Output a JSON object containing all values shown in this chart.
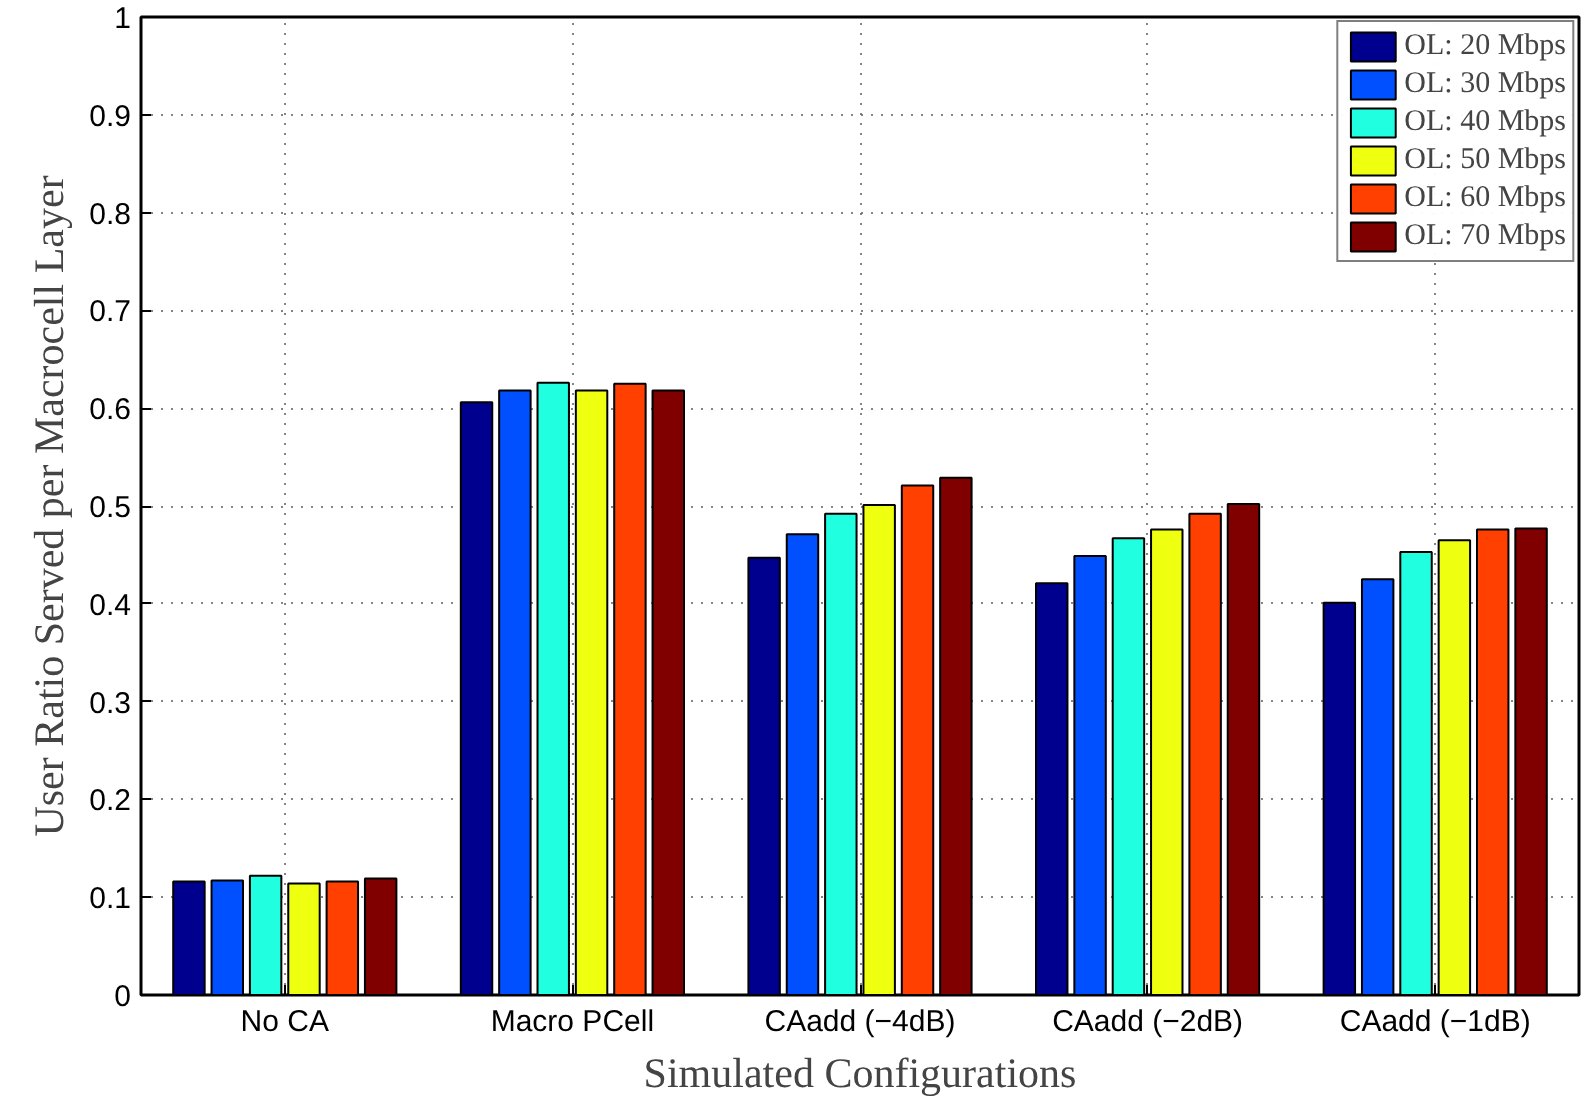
{
  "chart_data": {
    "type": "bar",
    "xlabel": "Simulated Configurations",
    "ylabel": "User Ratio Served per Macrocell Layer",
    "categories": [
      "No CA",
      "Macro PCell",
      "CAadd (−4dB)",
      "CAadd (−2dB)",
      "CAadd (−1dB)"
    ],
    "series": [
      {
        "name": "OL: 20 Mbps",
        "color": "#00008f",
        "values": [
          0.116,
          0.606,
          0.447,
          0.421,
          0.401
        ]
      },
      {
        "name": "OL: 30 Mbps",
        "color": "#0050ff",
        "values": [
          0.117,
          0.618,
          0.471,
          0.449,
          0.425
        ]
      },
      {
        "name": "OL: 40 Mbps",
        "color": "#20ffdf",
        "values": [
          0.122,
          0.626,
          0.492,
          0.467,
          0.453
        ]
      },
      {
        "name": "OL: 50 Mbps",
        "color": "#efff10",
        "values": [
          0.114,
          0.618,
          0.501,
          0.476,
          0.465
        ]
      },
      {
        "name": "OL: 60 Mbps",
        "color": "#ff4000",
        "values": [
          0.116,
          0.625,
          0.521,
          0.492,
          0.476
        ]
      },
      {
        "name": "OL: 70 Mbps",
        "color": "#800000",
        "values": [
          0.119,
          0.618,
          0.529,
          0.502,
          0.477
        ]
      }
    ],
    "ylim": [
      0,
      1
    ],
    "yticks": [
      0,
      0.1,
      0.2,
      0.3,
      0.4,
      0.5,
      0.6,
      0.7,
      0.8,
      0.9,
      1
    ],
    "grid": true,
    "legend": "top right"
  }
}
